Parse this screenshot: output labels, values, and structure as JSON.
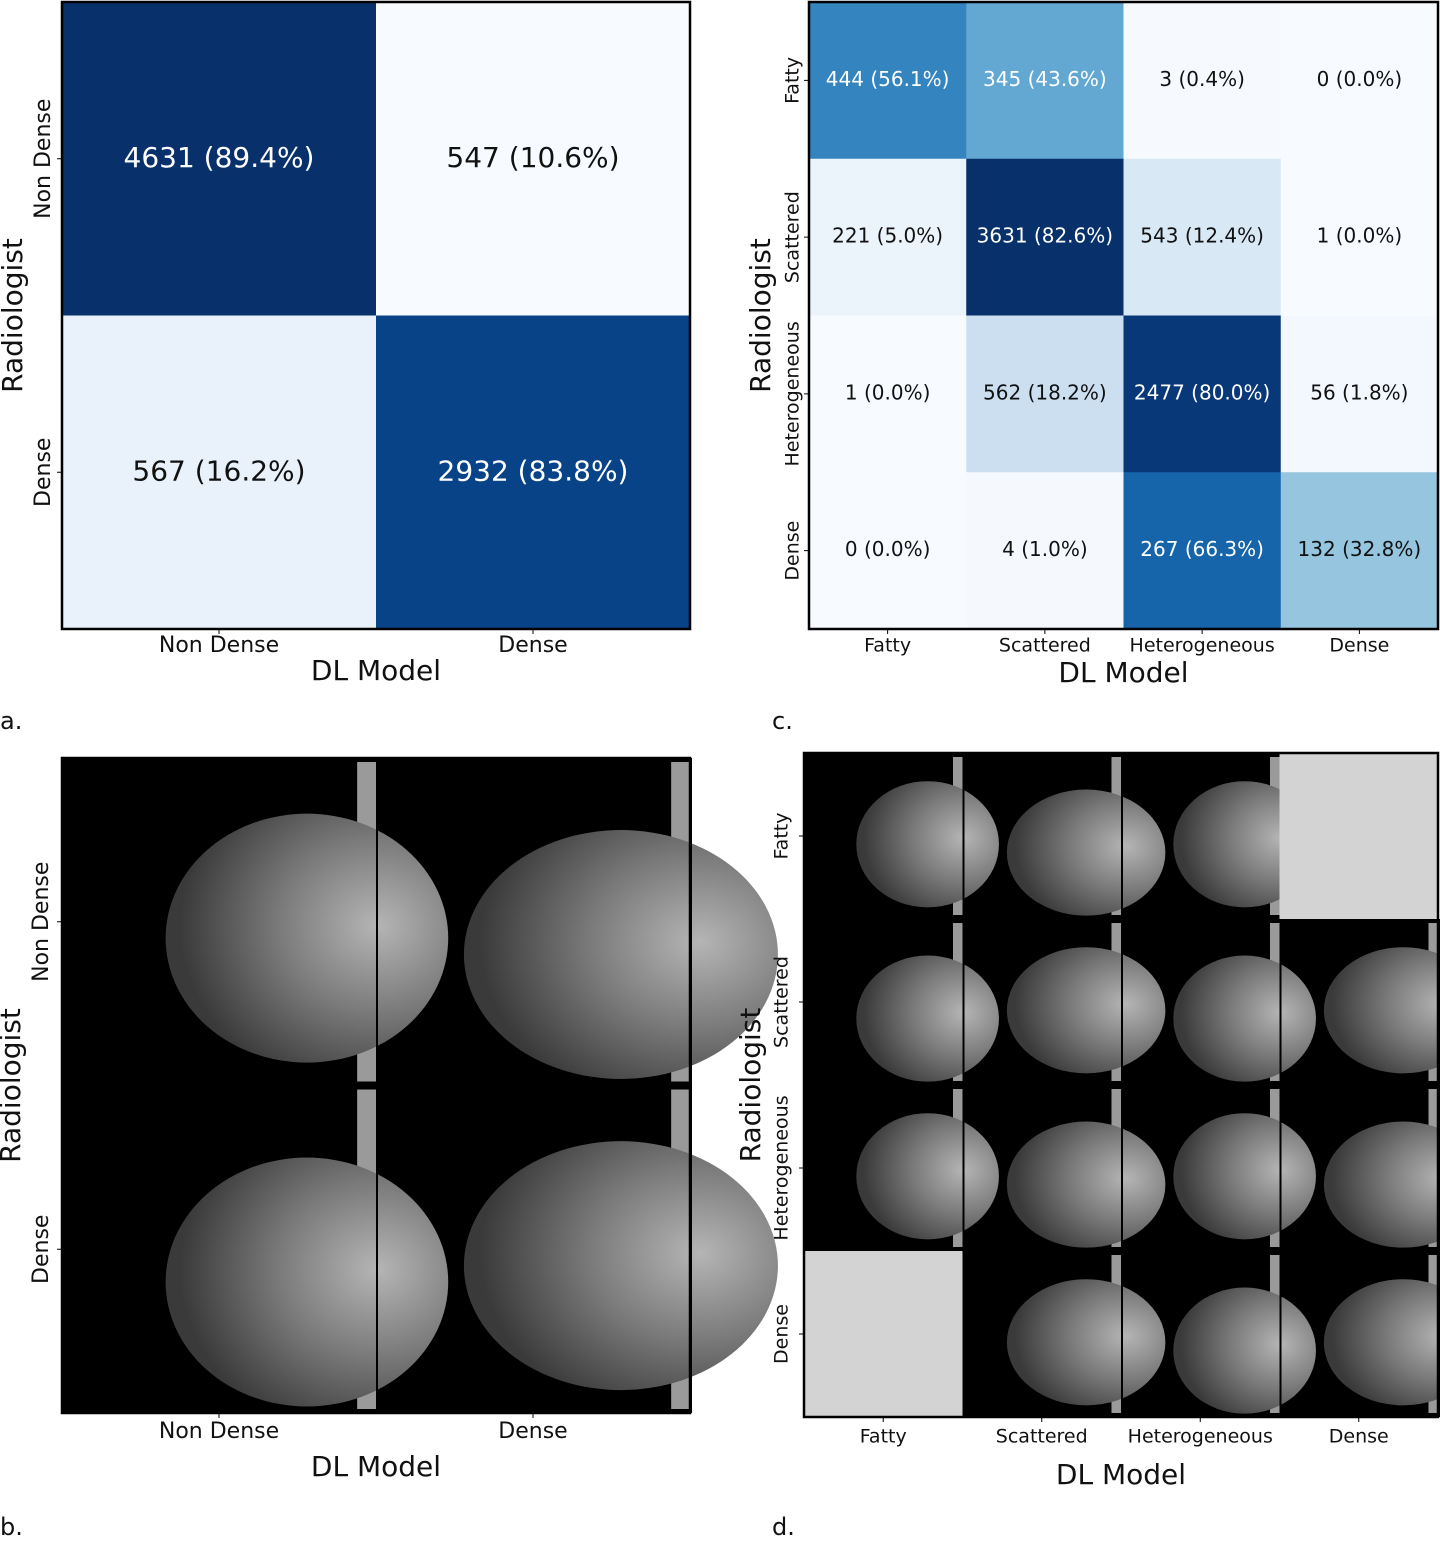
{
  "chart_data": [
    {
      "type": "heatmap",
      "panel": "a.",
      "x_label": "DL Model",
      "y_label": "Radiologist",
      "categories": [
        "Non Dense",
        "Dense"
      ],
      "values": [
        [
          4631,
          547
        ],
        [
          567,
          2932
        ]
      ],
      "percents": [
        [
          89.4,
          10.6
        ],
        [
          16.2,
          83.8
        ]
      ],
      "value_labels": [
        [
          "4631 (89.4%)",
          "547 (10.6%)"
        ],
        [
          "567 (16.2%)",
          "2932 (83.8%)"
        ]
      ],
      "colormap": "Blues"
    },
    {
      "type": "heatmap",
      "panel": "c.",
      "x_label": "DL Model",
      "y_label": "Radiologist",
      "categories": [
        "Fatty",
        "Scattered",
        "Heterogeneous",
        "Dense"
      ],
      "values": [
        [
          444,
          345,
          3,
          0
        ],
        [
          221,
          3631,
          543,
          1
        ],
        [
          1,
          562,
          2477,
          56
        ],
        [
          0,
          4,
          267,
          132
        ]
      ],
      "percents": [
        [
          56.1,
          43.6,
          0.4,
          0.0
        ],
        [
          5.0,
          82.6,
          12.4,
          0.0
        ],
        [
          0.0,
          18.2,
          80.0,
          1.8
        ],
        [
          0.0,
          1.0,
          66.3,
          32.8
        ]
      ],
      "value_labels": [
        [
          "444 (56.1%)",
          "345 (43.6%)",
          "3 (0.4%)",
          "0 (0.0%)"
        ],
        [
          "221 (5.0%)",
          "3631 (82.6%)",
          "543 (12.4%)",
          "1 (0.0%)"
        ],
        [
          "1 (0.0%)",
          "562 (18.2%)",
          "2477 (80.0%)",
          "56 (1.8%)"
        ],
        [
          "0 (0.0%)",
          "4 (1.0%)",
          "267 (66.3%)",
          "132 (32.8%)"
        ]
      ],
      "colormap": "Blues"
    },
    {
      "type": "image_grid",
      "panel": "b.",
      "x_label": "DL Model",
      "y_label": "Radiologist",
      "categories": [
        "Non Dense",
        "Dense"
      ],
      "empty_cells": [
        [
          false,
          false
        ],
        [
          false,
          false
        ]
      ]
    },
    {
      "type": "image_grid",
      "panel": "d.",
      "x_label": "DL Model",
      "y_label": "Radiologist",
      "categories": [
        "Fatty",
        "Scattered",
        "Heterogeneous",
        "Dense"
      ],
      "empty_cells": [
        [
          false,
          false,
          false,
          true
        ],
        [
          false,
          false,
          false,
          false
        ],
        [
          false,
          false,
          false,
          false
        ],
        [
          true,
          false,
          false,
          false
        ]
      ]
    }
  ]
}
